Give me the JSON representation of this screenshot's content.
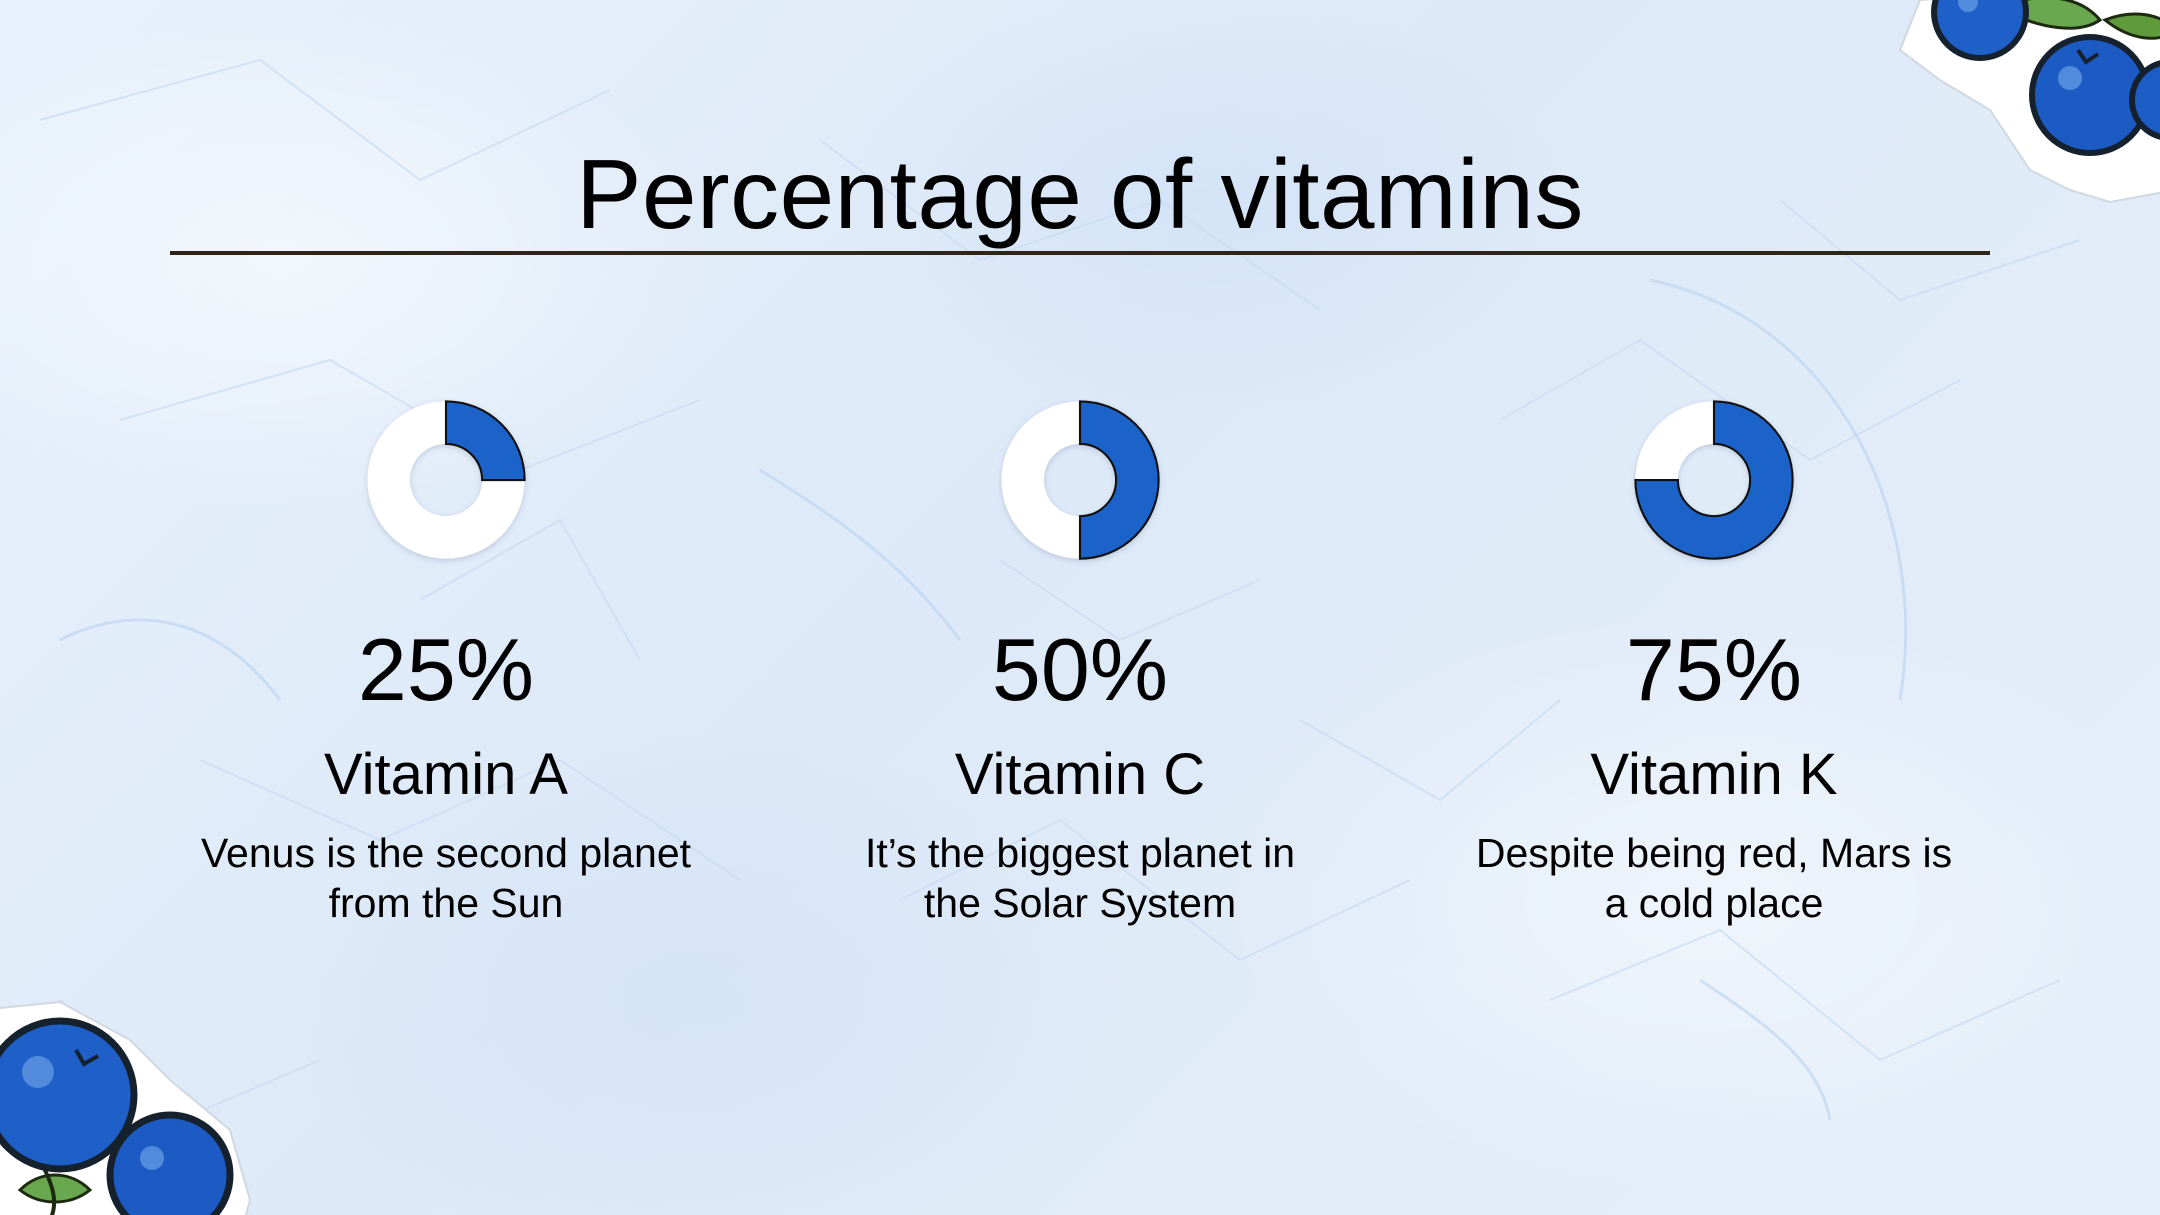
{
  "slide": {
    "title": "Percentage of vitamins"
  },
  "colors": {
    "accent_blue": "#1c63c9",
    "donut_remainder": "#ffffff",
    "title_rule": "#2e2417",
    "background": "#e4eef9",
    "leaf_green": "#5f9a3b"
  },
  "chart_data": [
    {
      "type": "pie",
      "values": [
        25,
        75
      ],
      "percent_label": "25%",
      "category": "Vitamin A",
      "description": [
        "Venus is the second planet",
        "from the Sun"
      ]
    },
    {
      "type": "pie",
      "values": [
        50,
        50
      ],
      "percent_label": "50%",
      "category": "Vitamin C",
      "description": [
        "It’s the biggest planet in",
        "the Solar System"
      ]
    },
    {
      "type": "pie",
      "values": [
        75,
        25
      ],
      "percent_label": "75%",
      "category": "Vitamin K",
      "description": [
        "Despite being red, Mars is",
        "a cold place"
      ]
    }
  ],
  "decorations": {
    "top_right_icon": "blueberries-icon",
    "bottom_left_icon": "blueberries-icon"
  }
}
